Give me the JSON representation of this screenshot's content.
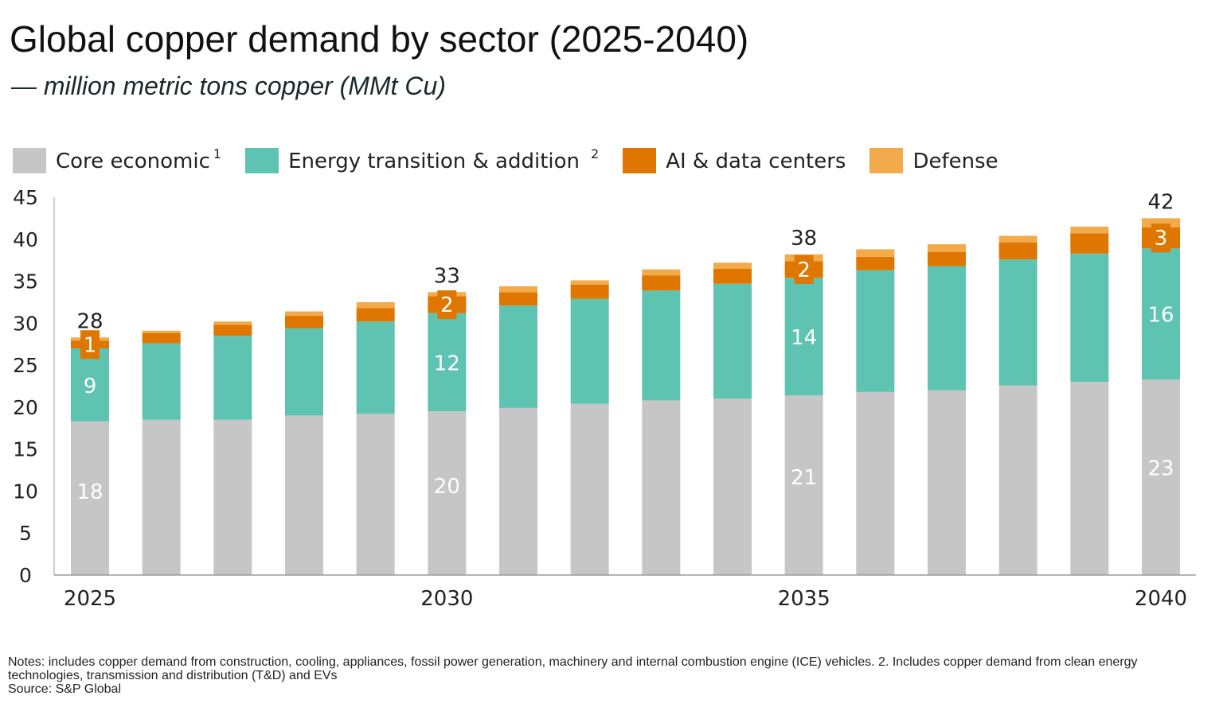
{
  "header": {
    "title": "Global copper demand by sector (2025-2040)",
    "subtitle": "— million metric tons copper (MMt Cu)"
  },
  "legend": [
    {
      "label": "Core economic",
      "sup": "1",
      "color": "#c6c6c6"
    },
    {
      "label": "Energy transition & addition",
      "sup": "2",
      "color": "#5fc3b1"
    },
    {
      "label": "AI & data centers",
      "sup": "",
      "color": "#df7600"
    },
    {
      "label": "Defense",
      "sup": "",
      "color": "#f3aa4a"
    }
  ],
  "chart_data": {
    "type": "bar",
    "stacked": true,
    "categories": [
      "2025",
      "2026",
      "2027",
      "2028",
      "2029",
      "2030",
      "2031",
      "2032",
      "2033",
      "2034",
      "2035",
      "2036",
      "2037",
      "2038",
      "2039",
      "2040"
    ],
    "x_tick_labels": [
      "2025",
      "2030",
      "2035",
      "2040"
    ],
    "y_ticks": [
      "0",
      "5",
      "10",
      "15",
      "20",
      "25",
      "30",
      "35",
      "40",
      "45"
    ],
    "ylim": [
      0,
      45
    ],
    "series": [
      {
        "name": "Core economic",
        "color": "#c6c6c6",
        "values": [
          18.3,
          18.5,
          18.5,
          19.0,
          19.2,
          19.5,
          19.9,
          20.4,
          20.8,
          21.0,
          21.4,
          21.8,
          22.0,
          22.6,
          23.0,
          23.3
        ]
      },
      {
        "name": "Energy transition & addition",
        "color": "#5fc3b1",
        "values": [
          8.7,
          9.1,
          10.0,
          10.4,
          11.0,
          11.7,
          12.2,
          12.5,
          13.1,
          13.7,
          14.0,
          14.5,
          14.8,
          15.0,
          15.3,
          15.6
        ]
      },
      {
        "name": "AI & data centers",
        "color": "#df7600",
        "values": [
          0.9,
          1.2,
          1.3,
          1.5,
          1.6,
          2.0,
          1.6,
          1.7,
          1.8,
          1.8,
          2.0,
          1.6,
          1.7,
          2.0,
          2.4,
          2.5
        ]
      },
      {
        "name": "Defense",
        "color": "#f3aa4a",
        "values": [
          0.4,
          0.3,
          0.4,
          0.5,
          0.7,
          0.5,
          0.7,
          0.5,
          0.7,
          0.7,
          0.8,
          0.9,
          0.9,
          0.8,
          0.8,
          1.1
        ]
      }
    ],
    "data_labels": [
      {
        "category": "2025",
        "core": "18",
        "energy": "9",
        "ai": "1",
        "total": "28"
      },
      {
        "category": "2030",
        "core": "20",
        "energy": "12",
        "ai": "2",
        "total": "33"
      },
      {
        "category": "2035",
        "core": "21",
        "energy": "14",
        "ai": "2",
        "total": "38"
      },
      {
        "category": "2040",
        "core": "23",
        "energy": "16",
        "ai": "3",
        "total": "42"
      }
    ],
    "grid": false,
    "legend_position": "top-left"
  },
  "notes": {
    "line1": "Notes: includes copper demand from construction, cooling, appliances, fossil power generation, machinery and internal combustion engine (ICE) vehicles. 2. Includes copper demand from clean energy technologies, transmission and distribution (T&D) and EVs",
    "source": "Source: S&P Global"
  }
}
